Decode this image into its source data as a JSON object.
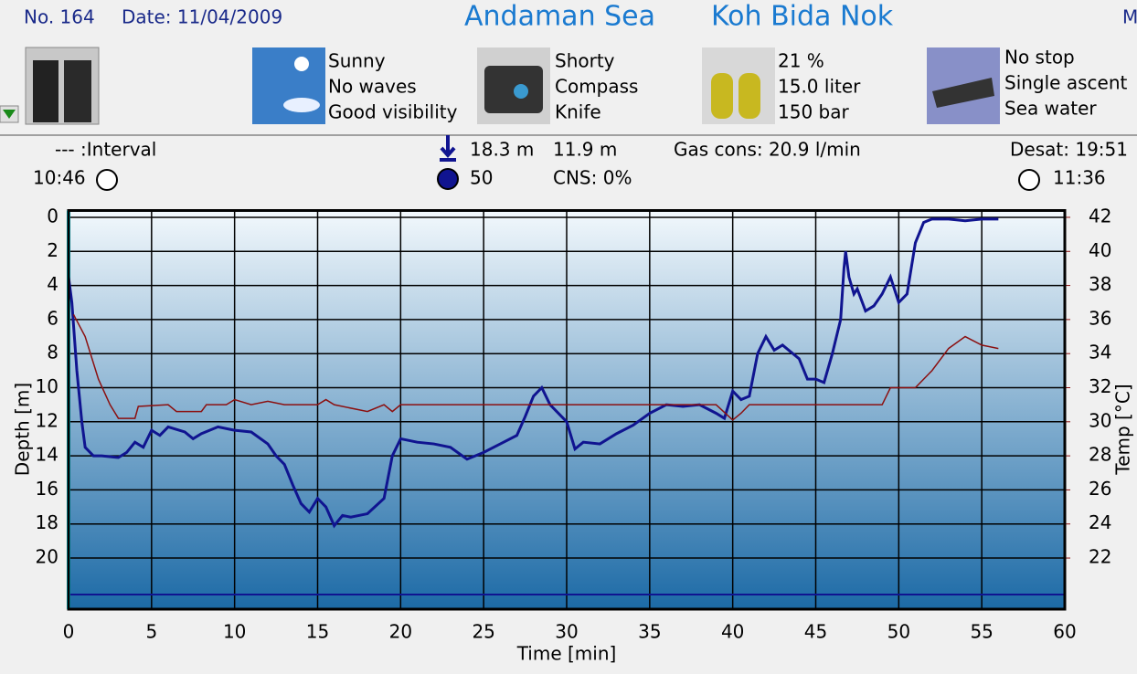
{
  "header": {
    "number": "No. 164",
    "date": "Date: 11/04/2009",
    "location": "Andaman Sea",
    "site": "Koh Bida Nok",
    "cut": "M"
  },
  "panels": {
    "weather": [
      "Sunny",
      "No waves",
      "Good visibility"
    ],
    "equipment": [
      "Shorty",
      "Compass",
      "Knife"
    ],
    "gas": [
      "21 %",
      "15.0 liter",
      "150 bar"
    ],
    "dive": [
      "No stop",
      "Single ascent",
      "Sea water"
    ]
  },
  "stats": {
    "interval": "--- :Interval",
    "entry_time": "10:46",
    "max_depth": "18.3 m",
    "avg_depth": "11.9 m",
    "gas_cons": "Gas cons: 20.9 l/min",
    "desat": "Desat: 19:51",
    "duration": "50",
    "cns": "CNS:  0%",
    "exit_time": "11:36"
  },
  "chart_data": {
    "type": "line",
    "xlabel": "Time [min]",
    "ylabel": "Depth [m]",
    "y2label": "Temp [°C]",
    "xlim": [
      0,
      60
    ],
    "xticks": [
      0,
      5,
      10,
      15,
      20,
      25,
      30,
      35,
      40,
      45,
      50,
      55,
      60
    ],
    "ylim": [
      -0.4,
      23
    ],
    "y_inverted": true,
    "yticks": [
      0,
      2,
      4,
      6,
      8,
      10,
      12,
      14,
      16,
      18,
      20
    ],
    "y2lim": [
      19,
      42.4
    ],
    "y2ticks": [
      22,
      24,
      26,
      28,
      30,
      32,
      34,
      36,
      38,
      40,
      42
    ],
    "grid": true,
    "series": [
      {
        "name": "Depth",
        "color": "#101490",
        "x": [
          0,
          0.2,
          0.5,
          0.8,
          1,
          1.5,
          2,
          3,
          3.5,
          4,
          4.5,
          5,
          5.5,
          6,
          7,
          7.5,
          8,
          9,
          10,
          11,
          12,
          12.5,
          13,
          13.5,
          14,
          14.5,
          15,
          15.5,
          16,
          16.5,
          17,
          18,
          19,
          19.5,
          20,
          21,
          22,
          23,
          24,
          25,
          26,
          27,
          27.5,
          28,
          28.5,
          29,
          30,
          30.5,
          31,
          32,
          33,
          34,
          35,
          36,
          37,
          38,
          39,
          39.5,
          40,
          40.5,
          41,
          41.5,
          42,
          42.5,
          43,
          44,
          44.5,
          45,
          45.5,
          46,
          46.5,
          46.7,
          46.8,
          47,
          47.3,
          47.5,
          48,
          48.5,
          49,
          49.5,
          50,
          50.5,
          51,
          51.5,
          52,
          53,
          54,
          55,
          56
        ],
        "values": [
          3.5,
          5,
          9,
          12,
          13.5,
          14,
          14,
          14.1,
          13.8,
          13.2,
          13.5,
          12.5,
          12.8,
          12.3,
          12.6,
          13,
          12.7,
          12.3,
          12.5,
          12.6,
          13.3,
          14,
          14.5,
          15.7,
          16.8,
          17.3,
          16.5,
          17,
          18.1,
          17.5,
          17.6,
          17.4,
          16.5,
          14,
          13,
          13.2,
          13.3,
          13.5,
          14.2,
          13.8,
          13.3,
          12.8,
          11.7,
          10.5,
          10,
          11,
          12,
          13.6,
          13.2,
          13.3,
          12.7,
          12.2,
          11.5,
          11,
          11.1,
          11,
          11.5,
          11.8,
          10.2,
          10.7,
          10.5,
          8,
          7,
          7.8,
          7.5,
          8.3,
          9.5,
          9.5,
          9.7,
          8,
          6,
          3,
          2,
          3.5,
          4.5,
          4.2,
          5.5,
          5.2,
          4.5,
          3.5,
          5,
          4.5,
          1.5,
          0.3,
          0.1,
          0.1,
          0.2,
          0.1,
          0.1
        ]
      },
      {
        "name": "Temp",
        "color": "#8b1010",
        "axis": "y2",
        "x": [
          0.3,
          1,
          1.8,
          2.5,
          3,
          4,
          4.2,
          6,
          6.5,
          8,
          8.3,
          9.5,
          10,
          11,
          12,
          13,
          15,
          15.5,
          16,
          18,
          19,
          19.5,
          20,
          39,
          40,
          40.5,
          41,
          49,
          49.5,
          51,
          52,
          53,
          54,
          55,
          56
        ],
        "values": [
          36.3,
          35,
          32.5,
          31,
          30.2,
          30.2,
          30.9,
          31,
          30.6,
          30.6,
          31,
          31,
          31.3,
          31,
          31.2,
          31,
          31,
          31.3,
          31,
          30.6,
          31,
          30.6,
          31,
          31,
          30.1,
          30.5,
          31,
          31,
          32,
          32,
          33,
          34.3,
          35,
          34.5,
          34.3
        ]
      }
    ]
  }
}
